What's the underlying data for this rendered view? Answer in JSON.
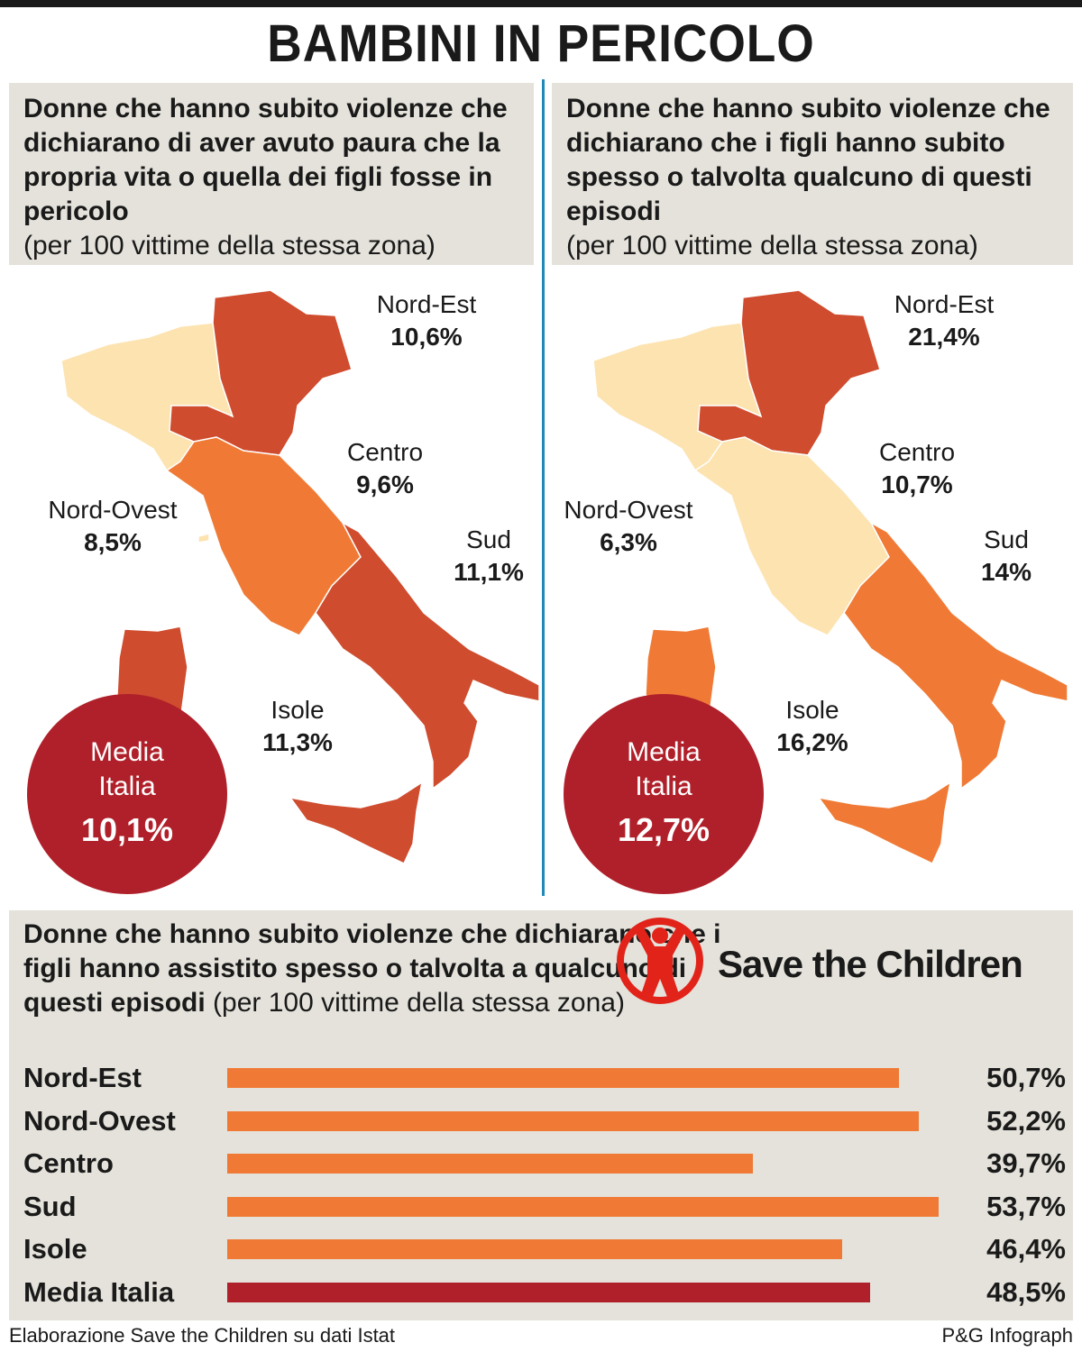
{
  "title": "BAMBINI IN PERICOLO",
  "colors": {
    "pale": "#fce3b0",
    "orange": "#f07a35",
    "rust": "#cf4c2e",
    "darkred": "#b0202a",
    "panel_bg": "#e4e2da",
    "divider": "#1f8ab8"
  },
  "chart_data": [
    {
      "type": "choropleth-map",
      "title": "Donne che hanno subito violenze che dichiarano di aver avuto paura che la propria vita o quella dei figli fosse in pericolo",
      "subtitle": "(per 100 vittime della stessa zona)",
      "regions": [
        {
          "name": "Nord-Est",
          "value": "10,6%",
          "color": "#cf4c2e"
        },
        {
          "name": "Centro",
          "value": "9,6%",
          "color": "#f07a35"
        },
        {
          "name": "Nord-Ovest",
          "value": "8,5%",
          "color": "#fce3b0"
        },
        {
          "name": "Sud",
          "value": "11,1%",
          "color": "#cf4c2e"
        },
        {
          "name": "Isole",
          "value": "11,3%",
          "color": "#cf4c2e"
        }
      ],
      "average": {
        "label": "Media Italia",
        "value": "10,1%"
      }
    },
    {
      "type": "choropleth-map",
      "title": "Donne che hanno subito violenze che dichiarano che i figli hanno subito spesso o talvolta qualcuno di questi episodi",
      "subtitle": "(per 100 vittime della stessa zona)",
      "regions": [
        {
          "name": "Nord-Est",
          "value": "21,4%",
          "color": "#cf4c2e"
        },
        {
          "name": "Centro",
          "value": "10,7%",
          "color": "#fce3b0"
        },
        {
          "name": "Nord-Ovest",
          "value": "6,3%",
          "color": "#fce3b0"
        },
        {
          "name": "Sud",
          "value": "14%",
          "color": "#f07a35"
        },
        {
          "name": "Isole",
          "value": "16,2%",
          "color": "#f07a35"
        }
      ],
      "average": {
        "label": "Media Italia",
        "value": "12,7%"
      }
    },
    {
      "type": "bar",
      "orientation": "horizontal",
      "title": "Donne che hanno subito violenze che dichiarano che i figli hanno assistito spesso o talvolta a qualcuno di questi episodi",
      "subtitle": "(per 100 vittime della stessa zona)",
      "categories": [
        "Nord-Est",
        "Nord-Ovest",
        "Centro",
        "Sud",
        "Isole",
        "Media Italia"
      ],
      "values": [
        50.7,
        52.2,
        39.7,
        53.7,
        46.4,
        48.5
      ],
      "value_labels": [
        "50,7%",
        "52,2%",
        "39,7%",
        "53,7%",
        "46,4%",
        "48,5%"
      ],
      "bar_colors": [
        "#f07a35",
        "#f07a35",
        "#f07a35",
        "#f07a35",
        "#f07a35",
        "#b0202a"
      ],
      "xlim": [
        0,
        55
      ]
    }
  ],
  "logo": {
    "text": "Save the Children",
    "icon": "save-the-children-logo-icon",
    "color": "#e2231a"
  },
  "footer": {
    "source": "Elaborazione Save the Children su dati Istat",
    "credit": "P&G Infograph"
  }
}
